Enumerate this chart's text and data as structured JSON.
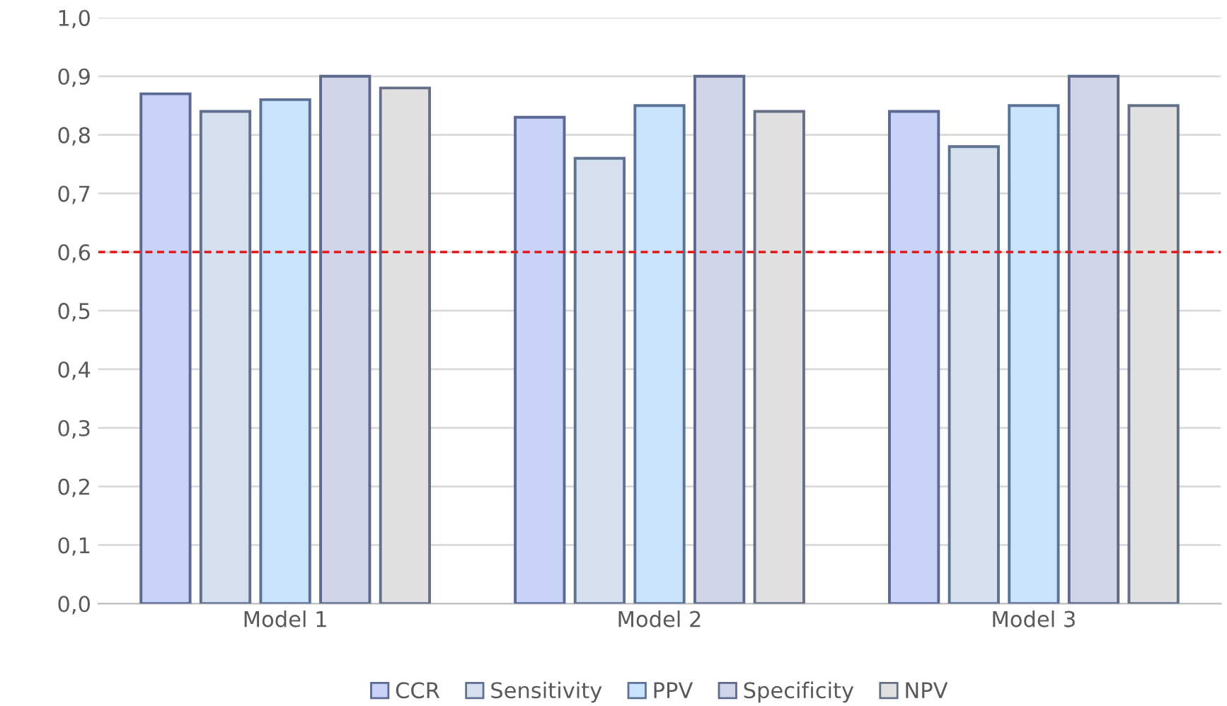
{
  "chart_data": {
    "type": "bar",
    "categories": [
      "Model 1",
      "Model 2",
      "Model 3"
    ],
    "series": [
      {
        "name": "CCR",
        "color": "#c9d3f8",
        "values": [
          0.87,
          0.83,
          0.84
        ]
      },
      {
        "name": "Sensitivity",
        "color": "#d6dff0",
        "values": [
          0.84,
          0.76,
          0.78
        ]
      },
      {
        "name": "PPV",
        "color": "#c8e3fb",
        "values": [
          0.86,
          0.85,
          0.85
        ]
      },
      {
        "name": "Specificity",
        "color": "#d0d4e8",
        "values": [
          0.9,
          0.9,
          0.9
        ]
      },
      {
        "name": "NPV",
        "color": "#e0e0e0",
        "values": [
          0.88,
          0.84,
          0.85
        ]
      }
    ],
    "ylim": [
      0,
      1
    ],
    "yticks": [
      {
        "value": 0,
        "label": "0,0"
      },
      {
        "value": 0.1,
        "label": "0,1"
      },
      {
        "value": 0.2,
        "label": "0,2"
      },
      {
        "value": 0.3,
        "label": "0,3"
      },
      {
        "value": 0.4,
        "label": "0,4"
      },
      {
        "value": 0.5,
        "label": "0,5"
      },
      {
        "value": 0.6,
        "label": "0,6"
      },
      {
        "value": 0.7,
        "label": "0,7"
      },
      {
        "value": 0.8,
        "label": "0,8"
      },
      {
        "value": 0.9,
        "label": "0,9"
      },
      {
        "value": 1,
        "label": "1,0"
      }
    ],
    "ref_lines": [
      {
        "axis": "y",
        "value": 0.6,
        "label": null,
        "color": "#e31a1c",
        "line_style": "dashed"
      }
    ],
    "grid": "y",
    "legend": "bottom"
  }
}
